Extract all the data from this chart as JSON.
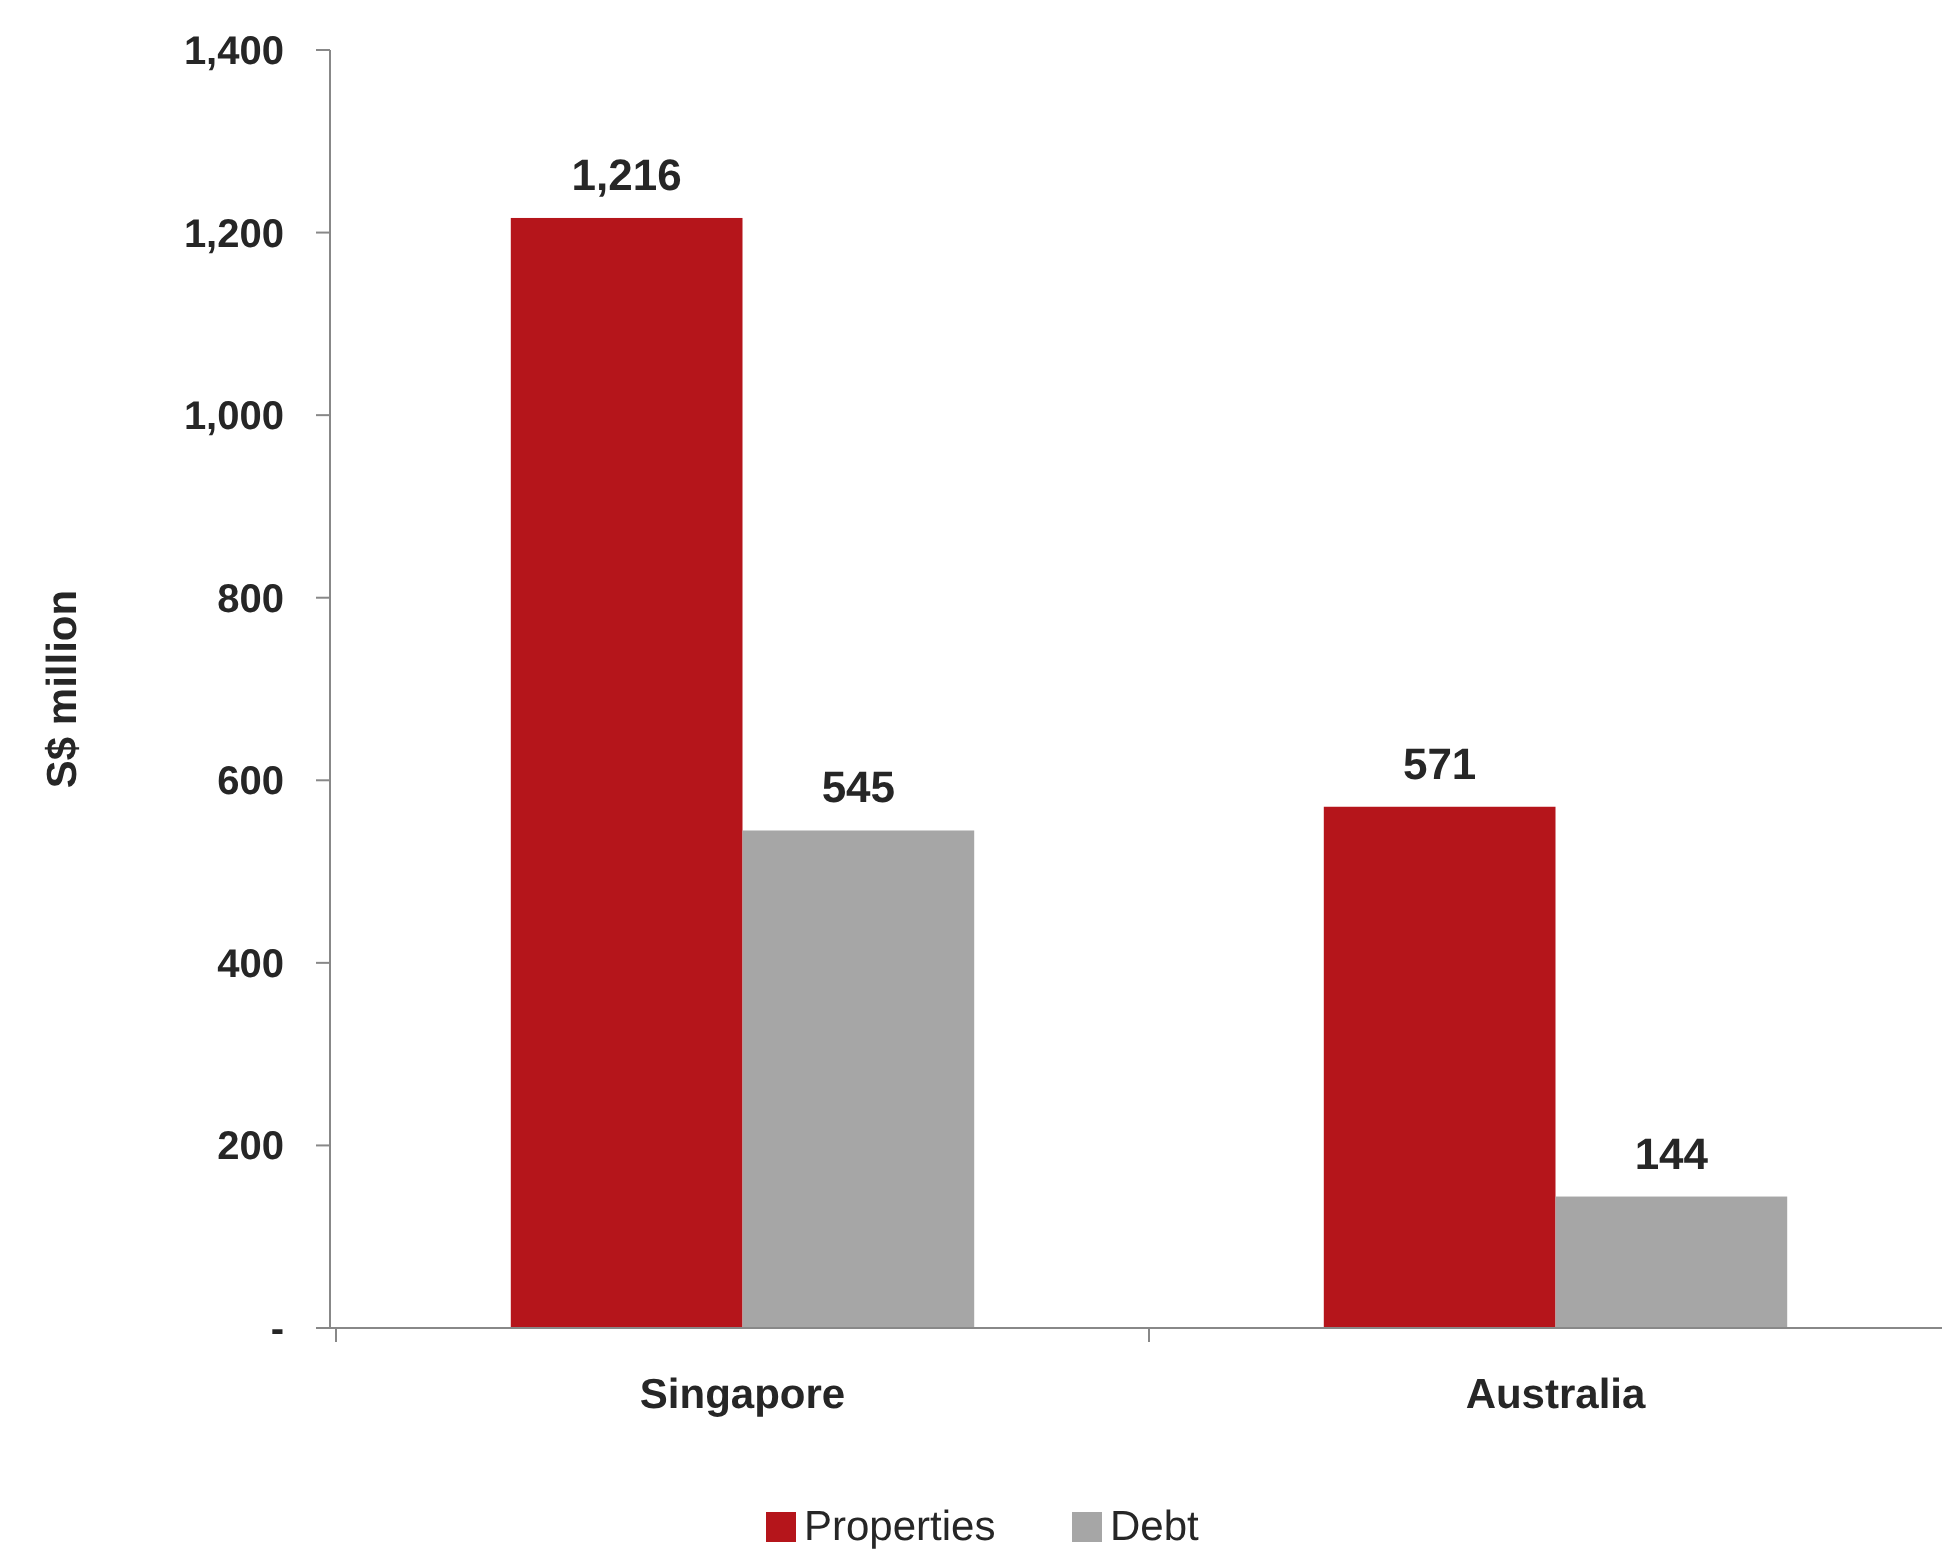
{
  "chart_data": {
    "type": "bar",
    "ylabel": "S$ million",
    "categories": [
      "Singapore",
      "Australia"
    ],
    "series": [
      {
        "name": "Properties",
        "color": "#b5151b",
        "values": [
          1216,
          571
        ],
        "value_labels": [
          "1,216",
          "571"
        ]
      },
      {
        "name": "Debt",
        "color": "#a6a6a6",
        "values": [
          545,
          144
        ],
        "value_labels": [
          "545",
          "144"
        ]
      }
    ],
    "ylim": [
      0,
      1400
    ],
    "yticks": [
      {
        "value": 0,
        "label": "-"
      },
      {
        "value": 200,
        "label": "200"
      },
      {
        "value": 400,
        "label": "400"
      },
      {
        "value": 600,
        "label": "600"
      },
      {
        "value": 800,
        "label": "800"
      },
      {
        "value": 1000,
        "label": "1,000"
      },
      {
        "value": 1200,
        "label": "1,200"
      },
      {
        "value": 1400,
        "label": "1,400"
      }
    ],
    "grid": false,
    "legend": "bottom"
  }
}
